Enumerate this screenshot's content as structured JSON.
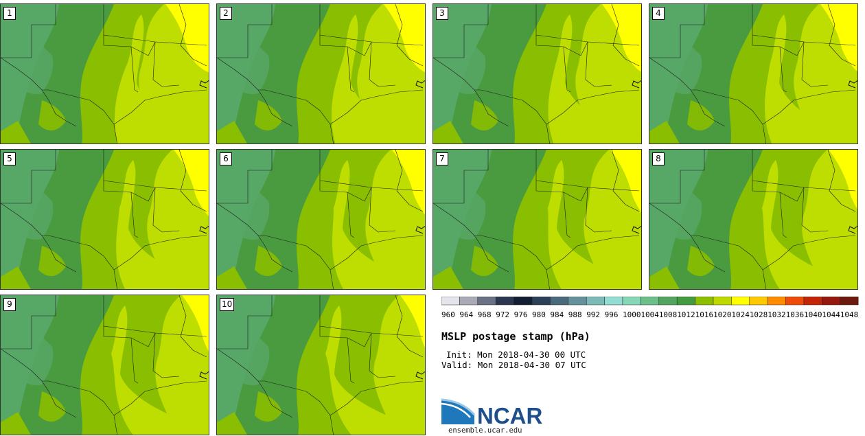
{
  "title": "MSLP postage stamp (hPa)",
  "init": "Init: Mon 2018-04-30 00 UTC",
  "valid": "Valid: Mon 2018-04-30 07 UTC",
  "logo": {
    "text": "NCAR",
    "url": "ensemble.ucar.edu"
  },
  "members": [
    "1",
    "2",
    "3",
    "4",
    "5",
    "6",
    "7",
    "8",
    "9",
    "10"
  ],
  "colorbar": {
    "ticks": [
      "960",
      "964",
      "968",
      "972",
      "976",
      "980",
      "984",
      "988",
      "992",
      "996",
      "1000",
      "1004",
      "1008",
      "1012",
      "1016",
      "1020",
      "1024",
      "1028",
      "1032",
      "1036",
      "1040",
      "1044",
      "1048"
    ],
    "colors": [
      "#e4e5ea",
      "#a9aab6",
      "#6b7185",
      "#2d3650",
      "#141e33",
      "#2c4058",
      "#4a6a7c",
      "#65929a",
      "#7db9b6",
      "#93dcd2",
      "#86d7b6",
      "#6cbf88",
      "#52a45e",
      "#449a3e",
      "#8bbf00",
      "#bed900",
      "#ffff00",
      "#ffc800",
      "#ff8c00",
      "#f04a0a",
      "#c42508",
      "#96180e",
      "#6d1a0e"
    ]
  },
  "map_colors": {
    "c1008": "#57a767",
    "c1012": "#4a9b40",
    "c1016": "#8abe00",
    "c1020": "#bedd00",
    "c1024": "#ffff00"
  }
}
